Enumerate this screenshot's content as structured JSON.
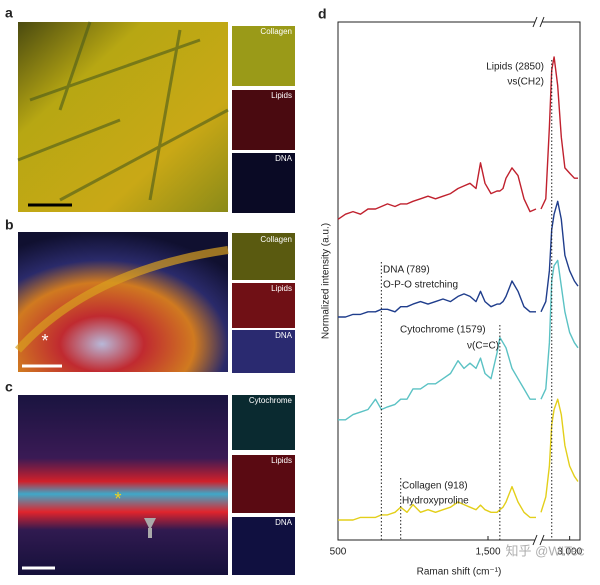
{
  "panels": [
    {
      "label": "a",
      "insets": [
        "Collagen",
        "Lipids",
        "DNA"
      ]
    },
    {
      "label": "b",
      "insets": [
        "Collagen",
        "Lipids",
        "DNA"
      ],
      "marker": "*"
    },
    {
      "label": "c",
      "insets": [
        "Cytochrome",
        "Lipids",
        "DNA"
      ],
      "marker": "*"
    }
  ],
  "chart_data": {
    "type": "line",
    "label": "d",
    "xlabel": "Raman shift (cm⁻¹)",
    "ylabel": "Normalized intensity (a.u.)",
    "xlim": [
      500,
      3070
    ],
    "xbreak": [
      1820,
      2760
    ],
    "ylim": [
      0,
      100
    ],
    "xticks": [
      500,
      {
        "value": 1500,
        "label": "1,500"
      },
      {
        "value": 3000,
        "label": "3,000"
      }
    ],
    "x": [
      500,
      550,
      600,
      650,
      700,
      750,
      789,
      830,
      880,
      918,
      960,
      1000,
      1050,
      1100,
      1150,
      1200,
      1250,
      1300,
      1340,
      1380,
      1420,
      1450,
      1480,
      1520,
      1560,
      1579,
      1600,
      1620,
      1660,
      1700,
      1740,
      1780,
      1820,
      2760,
      2800,
      2830,
      2850,
      2870,
      2900,
      2930,
      2960,
      3000,
      3040,
      3070
    ],
    "series": [
      {
        "color": "#c0212e",
        "values": [
          62,
          63,
          63.5,
          63,
          64,
          64,
          64.5,
          65,
          64.5,
          65,
          65,
          65.5,
          66,
          66.5,
          66,
          66.5,
          67,
          68,
          68.5,
          69,
          68,
          73,
          69,
          67,
          67.5,
          67.5,
          68,
          70,
          72,
          70.5,
          66,
          63.5,
          64,
          64,
          66,
          80,
          91,
          93.6,
          88,
          78,
          72,
          71,
          70,
          70
        ]
      },
      {
        "color": "#1f3d8c",
        "values": [
          43,
          43,
          43.5,
          43.5,
          44,
          44,
          44.5,
          44.5,
          44,
          45,
          45,
          45.5,
          46,
          45.5,
          46,
          46.5,
          46,
          47,
          47.5,
          47,
          46,
          48,
          46,
          45,
          45.5,
          45.5,
          46,
          47,
          50,
          48,
          45,
          44,
          44,
          44,
          46,
          52,
          60,
          63,
          65.5,
          62,
          55,
          52,
          50,
          49
        ]
      },
      {
        "color": "#5bc2c4",
        "values": [
          23,
          23,
          24,
          24.5,
          25,
          27,
          25,
          25.5,
          26,
          27,
          27,
          29,
          29,
          30,
          30,
          31,
          32,
          34.5,
          33,
          34,
          33,
          35,
          32,
          31,
          36,
          39,
          38,
          37,
          33,
          31,
          29,
          27,
          27,
          27,
          29,
          38,
          50,
          53,
          54,
          49,
          44,
          40,
          38,
          37
        ]
      },
      {
        "color": "#e3cf1a",
        "values": [
          3.5,
          3.5,
          3.5,
          4,
          4,
          4,
          4.5,
          4.5,
          5,
          6,
          5,
          6.5,
          5,
          5.5,
          5,
          5.5,
          6,
          7,
          6.5,
          6,
          5.5,
          6.4,
          5.5,
          5,
          5,
          5.5,
          6,
          7,
          10,
          7,
          5,
          4,
          4,
          5,
          8,
          14,
          22,
          25,
          27,
          24,
          18,
          14,
          12,
          11
        ]
      }
    ],
    "annotations": [
      {
        "x": 2850,
        "text": [
          "Lipids (2850)",
          "νs(CH2)"
        ]
      },
      {
        "x": 789,
        "text": [
          "DNA (789)",
          "O-P-O stretching"
        ]
      },
      {
        "x": 1579,
        "text": [
          "Cytochrome (1579)",
          "ν(C=C)"
        ]
      },
      {
        "x": 918,
        "text": [
          "Collagen (918)",
          "Hydroxyproline"
        ]
      }
    ]
  },
  "watermark": "知乎 @WITec"
}
